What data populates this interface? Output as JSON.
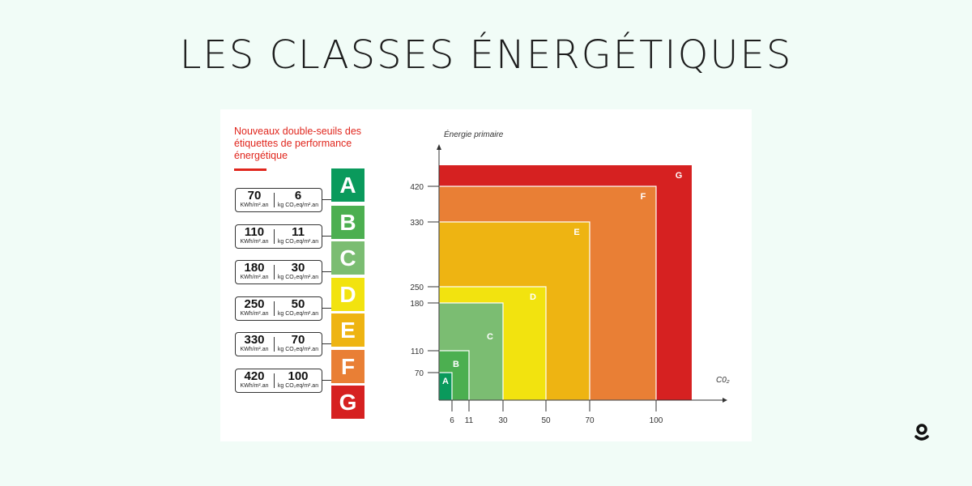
{
  "title": "LES CLASSES ÉNERGÉTIQUES",
  "label_panel": {
    "heading": "Nouveaux double-seuils des étiquettes de performance énergétique",
    "energy_unit": "KWh/m².an",
    "co2_unit": "kg CO₂eq/m².an",
    "rows": [
      {
        "energy": "70",
        "co2": "6"
      },
      {
        "energy": "110",
        "co2": "11"
      },
      {
        "energy": "180",
        "co2": "30"
      },
      {
        "energy": "250",
        "co2": "50"
      },
      {
        "energy": "330",
        "co2": "70"
      },
      {
        "energy": "420",
        "co2": "100"
      }
    ],
    "classes": [
      {
        "letter": "A",
        "color": "#0a9a5c"
      },
      {
        "letter": "B",
        "color": "#4caf50"
      },
      {
        "letter": "C",
        "color": "#7bbd72"
      },
      {
        "letter": "D",
        "color": "#f2e30f"
      },
      {
        "letter": "E",
        "color": "#eeb412"
      },
      {
        "letter": "F",
        "color": "#e97f35"
      },
      {
        "letter": "G",
        "color": "#d62121"
      }
    ]
  },
  "chart_data": {
    "type": "nested-rectangles",
    "ylabel": "Énergie primaire",
    "xlabel": "C0₂",
    "xticks": [
      "6",
      "11",
      "30",
      "50",
      "70",
      "100"
    ],
    "yticks": [
      "70",
      "110",
      "180",
      "250",
      "330",
      "420"
    ],
    "classes": [
      {
        "label": "A",
        "co2_max": 6,
        "energy_max": 70,
        "color": "#0a9a5c"
      },
      {
        "label": "B",
        "co2_max": 11,
        "energy_max": 110,
        "color": "#4caf50"
      },
      {
        "label": "C",
        "co2_max": 30,
        "energy_max": 180,
        "color": "#7bbd72"
      },
      {
        "label": "D",
        "co2_max": 50,
        "energy_max": 250,
        "color": "#f2e30f"
      },
      {
        "label": "E",
        "co2_max": 70,
        "energy_max": 330,
        "color": "#eeb412"
      },
      {
        "label": "F",
        "co2_max": 100,
        "energy_max": 420,
        "color": "#e97f35"
      },
      {
        "label": "G",
        "co2_max": null,
        "energy_max": null,
        "color": "#d62121"
      }
    ]
  }
}
